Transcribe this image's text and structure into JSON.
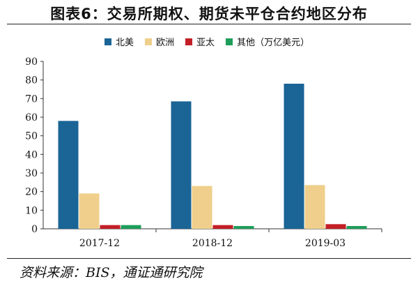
{
  "title": "图表6：交易所期权、期货未平仓合约地区分布",
  "legend_unit": "（万亿美元）",
  "source": "资料来源：BIS，通证通研究院",
  "chart_data": {
    "type": "bar",
    "categories": [
      "2017-12",
      "2018-12",
      "2019-03"
    ],
    "series": [
      {
        "name": "北美",
        "color": "#1a6496",
        "values": [
          58,
          68.5,
          78
        ]
      },
      {
        "name": "欧洲",
        "color": "#efcf8b",
        "values": [
          19,
          23,
          23.5
        ]
      },
      {
        "name": "亚太",
        "color": "#c41f26",
        "values": [
          2,
          2,
          2.5
        ]
      },
      {
        "name": "其他",
        "color": "#1e9e5a",
        "values": [
          2,
          1.5,
          1.5
        ]
      }
    ],
    "ylim": [
      0,
      90
    ],
    "yticks": [
      0,
      10,
      20,
      30,
      40,
      50,
      60,
      70,
      80,
      90
    ],
    "xlabel": "",
    "ylabel": "",
    "grid": false,
    "legend_position": "top"
  }
}
